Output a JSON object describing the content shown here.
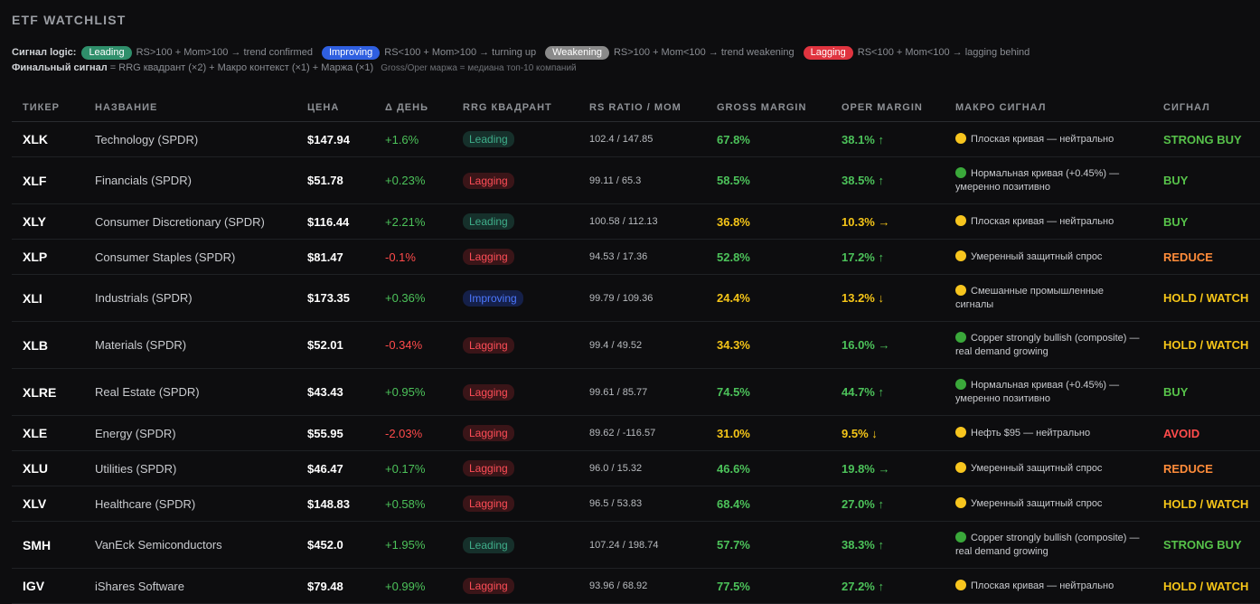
{
  "title": "ETF WATCHLIST",
  "legend": {
    "signal_label": "Сигнал logic:",
    "items": [
      {
        "pill": "Leading",
        "text": "RS>100 + Mom>100 → trend confirmed",
        "color": "#2f8f6b"
      },
      {
        "pill": "Improving",
        "text": "RS<100 + Mom>100 → turning up",
        "color": "#2f5fe0"
      },
      {
        "pill": "Weakening",
        "text": "RS>100 + Mom<100 → trend weakening",
        "color": "#8a8a8a"
      },
      {
        "pill": "Lagging",
        "text": "RS<100 + Mom<100 → lagging behind",
        "color": "#e0343f"
      }
    ],
    "final_label": "Финальный сигнал",
    "final_text": " = RRG квадрант (×2) + Макро контекст (×1) + Маржа (×1)",
    "note": "Gross/Oper маржа = медиана топ-10 компаний"
  },
  "columns": [
    "ТИКЕР",
    "НАЗВАНИЕ",
    "ЦЕНА",
    "Δ ДЕНЬ",
    "RRG КВАДРАНТ",
    "RS RATIO / MOM",
    "GROSS MARGIN",
    "OPER MARGIN",
    "МАКРО СИГНАЛ",
    "СИГНАЛ"
  ],
  "rows": [
    {
      "ticker": "XLK",
      "name": "Technology (SPDR)",
      "price": "$147.94",
      "change": "+1.6%",
      "chg_dir": "pos",
      "quadrant": "Leading",
      "rs": "102.4 / 147.85",
      "gross": "67.8%",
      "gross_c": "g",
      "oper": "38.1% ↑",
      "oper_c": "g",
      "macro_dot": "yellow",
      "macro": "Плоская кривая — нейтрально",
      "signal": "STRONG BUY",
      "sig_c": "sb",
      "tall": false
    },
    {
      "ticker": "XLF",
      "name": "Financials (SPDR)",
      "price": "$51.78",
      "change": "+0.23%",
      "chg_dir": "pos",
      "quadrant": "Lagging",
      "rs": "99.11 / 65.3",
      "gross": "58.5%",
      "gross_c": "g",
      "oper": "38.5% ↑",
      "oper_c": "g",
      "macro_dot": "green",
      "macro": "Нормальная кривая (+0.45%) — умеренно позитивно",
      "signal": "BUY",
      "sig_c": "b",
      "tall": true
    },
    {
      "ticker": "XLY",
      "name": "Consumer Discretionary (SPDR)",
      "price": "$116.44",
      "change": "+2.21%",
      "chg_dir": "pos",
      "quadrant": "Leading",
      "rs": "100.58 / 112.13",
      "gross": "36.8%",
      "gross_c": "y",
      "oper": "10.3% →",
      "oper_c": "y",
      "macro_dot": "yellow",
      "macro": "Плоская кривая — нейтрально",
      "signal": "BUY",
      "sig_c": "b",
      "tall": false
    },
    {
      "ticker": "XLP",
      "name": "Consumer Staples (SPDR)",
      "price": "$81.47",
      "change": "-0.1%",
      "chg_dir": "neg",
      "quadrant": "Lagging",
      "rs": "94.53 / 17.36",
      "gross": "52.8%",
      "gross_c": "g",
      "oper": "17.2% ↑",
      "oper_c": "g",
      "macro_dot": "yellow",
      "macro": "Умеренный защитный спрос",
      "signal": "REDUCE",
      "sig_c": "r",
      "tall": false
    },
    {
      "ticker": "XLI",
      "name": "Industrials (SPDR)",
      "price": "$173.35",
      "change": "+0.36%",
      "chg_dir": "pos",
      "quadrant": "Improving",
      "rs": "99.79 / 109.36",
      "gross": "24.4%",
      "gross_c": "y",
      "oper": "13.2% ↓",
      "oper_c": "y",
      "macro_dot": "yellow",
      "macro": "Смешанные промышленные сигналы",
      "signal": "HOLD / WATCH",
      "sig_c": "hw",
      "tall": true
    },
    {
      "ticker": "XLB",
      "name": "Materials (SPDR)",
      "price": "$52.01",
      "change": "-0.34%",
      "chg_dir": "neg",
      "quadrant": "Lagging",
      "rs": "99.4 / 49.52",
      "gross": "34.3%",
      "gross_c": "y",
      "oper": "16.0% →",
      "oper_c": "g",
      "macro_dot": "green",
      "macro": "Copper strongly bullish (composite) — real demand growing",
      "signal": "HOLD / WATCH",
      "sig_c": "hw",
      "tall": true
    },
    {
      "ticker": "XLRE",
      "name": "Real Estate (SPDR)",
      "price": "$43.43",
      "change": "+0.95%",
      "chg_dir": "pos",
      "quadrant": "Lagging",
      "rs": "99.61 / 85.77",
      "gross": "74.5%",
      "gross_c": "g",
      "oper": "44.7% ↑",
      "oper_c": "g",
      "macro_dot": "green",
      "macro": "Нормальная кривая (+0.45%) — умеренно позитивно",
      "signal": "BUY",
      "sig_c": "b",
      "tall": true
    },
    {
      "ticker": "XLE",
      "name": "Energy (SPDR)",
      "price": "$55.95",
      "change": "-2.03%",
      "chg_dir": "neg",
      "quadrant": "Lagging",
      "rs": "89.62 / -116.57",
      "gross": "31.0%",
      "gross_c": "y",
      "oper": "9.5% ↓",
      "oper_c": "y",
      "macro_dot": "yellow",
      "macro": "Нефть $95 — нейтрально",
      "signal": "AVOID",
      "sig_c": "av",
      "tall": false
    },
    {
      "ticker": "XLU",
      "name": "Utilities (SPDR)",
      "price": "$46.47",
      "change": "+0.17%",
      "chg_dir": "pos",
      "quadrant": "Lagging",
      "rs": "96.0 / 15.32",
      "gross": "46.6%",
      "gross_c": "g",
      "oper": "19.8% →",
      "oper_c": "g",
      "macro_dot": "yellow",
      "macro": "Умеренный защитный спрос",
      "signal": "REDUCE",
      "sig_c": "r",
      "tall": false
    },
    {
      "ticker": "XLV",
      "name": "Healthcare (SPDR)",
      "price": "$148.83",
      "change": "+0.58%",
      "chg_dir": "pos",
      "quadrant": "Lagging",
      "rs": "96.5 / 53.83",
      "gross": "68.4%",
      "gross_c": "g",
      "oper": "27.0% ↑",
      "oper_c": "g",
      "macro_dot": "yellow",
      "macro": "Умеренный защитный спрос",
      "signal": "HOLD / WATCH",
      "sig_c": "hw",
      "tall": false
    },
    {
      "ticker": "SMH",
      "name": "VanEck Semiconductors",
      "price": "$452.0",
      "change": "+1.95%",
      "chg_dir": "pos",
      "quadrant": "Leading",
      "rs": "107.24 / 198.74",
      "gross": "57.7%",
      "gross_c": "g",
      "oper": "38.3% ↑",
      "oper_c": "g",
      "macro_dot": "green",
      "macro": "Copper strongly bullish (composite) — real demand growing",
      "signal": "STRONG BUY",
      "sig_c": "sb",
      "tall": true
    },
    {
      "ticker": "IGV",
      "name": "iShares Software",
      "price": "$79.48",
      "change": "+0.99%",
      "chg_dir": "pos",
      "quadrant": "Lagging",
      "rs": "93.96 / 68.92",
      "gross": "77.5%",
      "gross_c": "g",
      "oper": "27.2% ↑",
      "oper_c": "g",
      "macro_dot": "yellow",
      "macro": "Плоская кривая — нейтрально",
      "signal": "HOLD / WATCH",
      "sig_c": "hw",
      "tall": false
    }
  ]
}
